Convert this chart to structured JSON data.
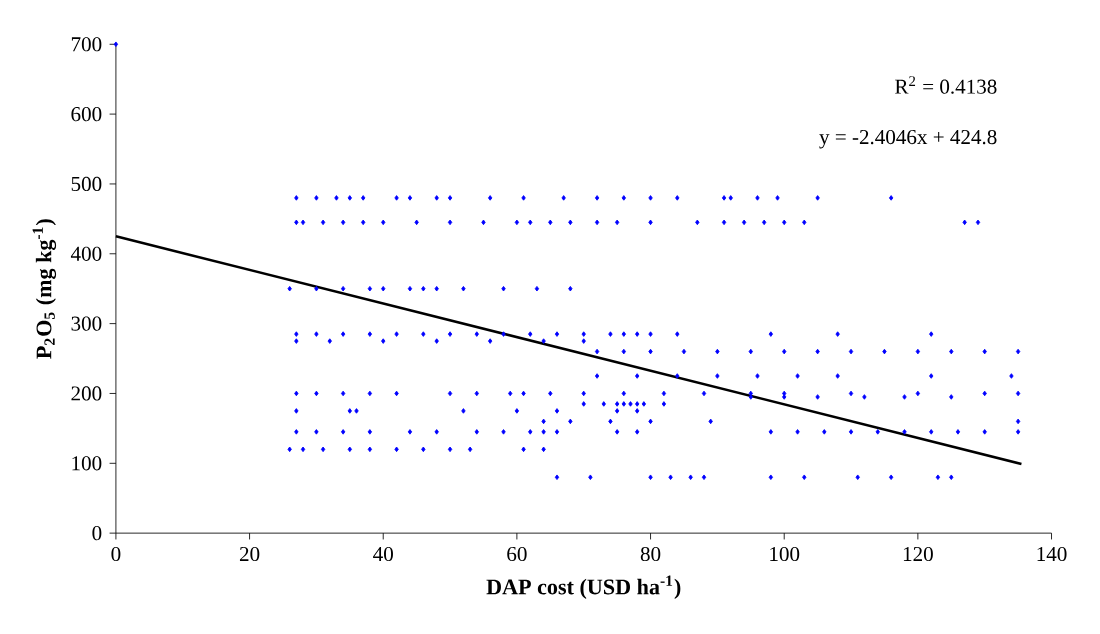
{
  "chart_data": {
    "type": "scatter",
    "xlabel": "DAP cost (USD ha$^{-1}$)",
    "ylabel": "P$_{2}$O$_{5}$  (mg kg$^{-1}$)",
    "annotations": [
      "R$^{2}$ = 0.4138",
      "y = -2.4046x + 424.8"
    ],
    "xlim": [
      0,
      140
    ],
    "xticks": [
      0,
      20,
      40,
      60,
      80,
      100,
      120,
      140
    ],
    "ylim": [
      0,
      700
    ],
    "yticks": [
      0,
      100,
      200,
      300,
      400,
      500,
      600,
      700
    ],
    "series": [
      {
        "marker": "diamond",
        "color": "#0000ff",
        "x": [
          0,
          27,
          30,
          33,
          35,
          37,
          42,
          44,
          48,
          50,
          56,
          61,
          67,
          72,
          76,
          80,
          84,
          91,
          92,
          96,
          99,
          105,
          116,
          27,
          28,
          31,
          34,
          37,
          40,
          45,
          50,
          55,
          60,
          62,
          65,
          68,
          72,
          75,
          80,
          87,
          91,
          94,
          97,
          100,
          103,
          127,
          129,
          26,
          30,
          34,
          38,
          40,
          44,
          46,
          48,
          52,
          58,
          63,
          68,
          27,
          30,
          34,
          38,
          42,
          46,
          50,
          54,
          58,
          62,
          66,
          70,
          74,
          76,
          78,
          80,
          84,
          98,
          108,
          122,
          72,
          76,
          80,
          85,
          90,
          95,
          100,
          105,
          110,
          115,
          120,
          125,
          130,
          135,
          27,
          32,
          40,
          48,
          56,
          64,
          70,
          72,
          78,
          84,
          90,
          96,
          102,
          108,
          122,
          134,
          27,
          30,
          34,
          38,
          42,
          50,
          54,
          59,
          61,
          65,
          70,
          76,
          82,
          88,
          95,
          100,
          110,
          120,
          130,
          135,
          27,
          35,
          36,
          52,
          60,
          66,
          75,
          78,
          70,
          73,
          75,
          76,
          77,
          78,
          79,
          82,
          95,
          100,
          105,
          112,
          118,
          125,
          27,
          30,
          34,
          38,
          44,
          48,
          54,
          58,
          62,
          64,
          66,
          75,
          78,
          98,
          102,
          106,
          110,
          114,
          118,
          122,
          126,
          130,
          135,
          26,
          28,
          31,
          35,
          38,
          42,
          46,
          50,
          53,
          61,
          64,
          64,
          68,
          74,
          80,
          89,
          135,
          66,
          71,
          80,
          83,
          86,
          88,
          98,
          103,
          111,
          116,
          123,
          125
        ],
        "values": [
          700,
          480,
          480,
          480,
          480,
          480,
          480,
          480,
          480,
          480,
          480,
          480,
          480,
          480,
          480,
          480,
          480,
          480,
          480,
          480,
          480,
          480,
          480,
          445,
          445,
          445,
          445,
          445,
          445,
          445,
          445,
          445,
          445,
          445,
          445,
          445,
          445,
          445,
          445,
          445,
          445,
          445,
          445,
          445,
          445,
          445,
          445,
          350,
          350,
          350,
          350,
          350,
          350,
          350,
          350,
          350,
          350,
          350,
          350,
          285,
          285,
          285,
          285,
          285,
          285,
          285,
          285,
          285,
          285,
          285,
          285,
          285,
          285,
          285,
          285,
          285,
          285,
          285,
          285,
          260,
          260,
          260,
          260,
          260,
          260,
          260,
          260,
          260,
          260,
          260,
          260,
          260,
          260,
          275,
          275,
          275,
          275,
          275,
          275,
          275,
          225,
          225,
          225,
          225,
          225,
          225,
          225,
          225,
          225,
          200,
          200,
          200,
          200,
          200,
          200,
          200,
          200,
          200,
          200,
          200,
          200,
          200,
          200,
          200,
          200,
          200,
          200,
          200,
          200,
          175,
          175,
          175,
          175,
          175,
          175,
          175,
          175,
          185,
          185,
          185,
          185,
          185,
          185,
          185,
          185,
          195,
          195,
          195,
          195,
          195,
          195,
          145,
          145,
          145,
          145,
          145,
          145,
          145,
          145,
          145,
          145,
          145,
          145,
          145,
          145,
          145,
          145,
          145,
          145,
          145,
          145,
          145,
          145,
          145,
          120,
          120,
          120,
          120,
          120,
          120,
          120,
          120,
          120,
          120,
          120,
          160,
          160,
          160,
          160,
          160,
          160,
          80,
          80,
          80,
          80,
          80,
          80,
          80,
          80,
          80,
          80,
          80,
          80
        ]
      },
      {
        "type": "line",
        "marker": "none",
        "color": "#000000",
        "x": [
          0,
          135.5
        ],
        "values": [
          425,
          99
        ]
      }
    ]
  }
}
